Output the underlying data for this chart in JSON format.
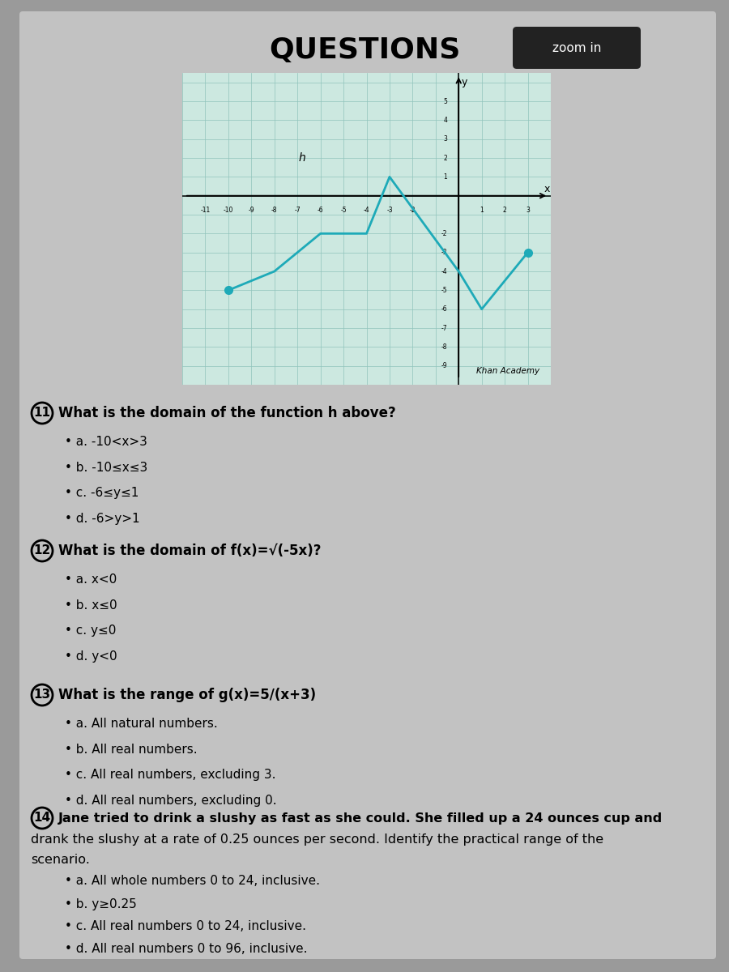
{
  "title": "QUESTIONS",
  "bg_color": "#9a9a9a",
  "card_color": "#c2c2c2",
  "graph_bg_color": "#cce8e0",
  "graph_line_color": "#1eaab8",
  "graph_x_points": [
    -10,
    -8,
    -6,
    -4,
    -3,
    0,
    1,
    3
  ],
  "graph_y_points": [
    -5,
    -4,
    -2,
    -2,
    1,
    -4,
    -6,
    -3
  ],
  "graph_xlim": [
    -12,
    4
  ],
  "graph_ylim": [
    -9.8,
    6.5
  ],
  "zoom_btn_text": "zoom in",
  "q11_num": "11",
  "q11_text": "What is the domain of the function h above?",
  "q11_a": "a. -10<x>3",
  "q11_b": "b. -10≤x≤3",
  "q11_c": "c. -6≤y≤1",
  "q11_d": "d. -6>y>1",
  "q12_num": "12",
  "q12_text": "What is the domain of f(x)=√(-5x)?",
  "q12_a": "a. x<0",
  "q12_b": "b. x≤0",
  "q12_c": "c. y≤0",
  "q12_d": "d. y<0",
  "q13_num": "13",
  "q13_text": "What is the range of g(x)=5/(x+3)",
  "q13_a": "a. All natural numbers.",
  "q13_b": "b. All real numbers.",
  "q13_c": "c. All real numbers, excluding 3.",
  "q13_d": "d. All real numbers, excluding 0.",
  "q14_num": "14",
  "q14_text_line1": "Jane tried to drink a slushy as fast as she could. She filled up a 24 ounces cup and",
  "q14_text_line2": "drank the slushy at a rate of 0.25 ounces per second. Identify the practical range of the",
  "q14_text_line3": "scenario.",
  "q14_a": "a. All whole numbers 0 to 24, inclusive.",
  "q14_b": "b. y≥0.25",
  "q14_c": "c. All real numbers 0 to 24, inclusive.",
  "q14_d": "d. All real numbers 0 to 96, inclusive.",
  "khan_text": "Khan Academy"
}
